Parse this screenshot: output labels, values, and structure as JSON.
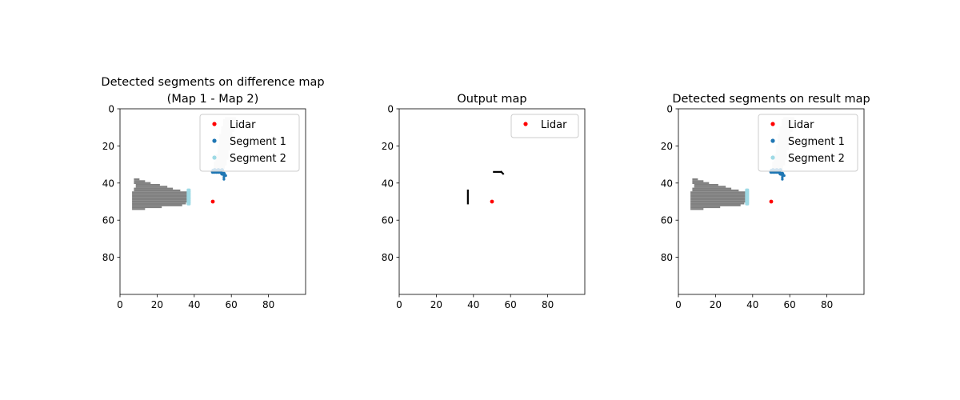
{
  "chart_data": [
    {
      "type": "heatmap",
      "title_lines": [
        "Detected segments on difference map",
        "(Map 1 - Map 2)"
      ],
      "xlim": [
        0,
        100
      ],
      "ylim": [
        100,
        0
      ],
      "xticks": [
        0,
        20,
        40,
        60,
        80
      ],
      "yticks": [
        0,
        20,
        40,
        60,
        80
      ],
      "legend_position": "upper right",
      "legend": [
        {
          "label": "Lidar",
          "color": "#ff0000"
        },
        {
          "label": "Segment 1",
          "color": "#1f77b4"
        },
        {
          "label": "Segment 2",
          "color": "#9edae5"
        }
      ],
      "regions": [
        {
          "kind": "light",
          "color": "#e6e6e6",
          "rows": [
            [
              5,
              57,
              62
            ],
            [
              6,
              56,
              62
            ],
            [
              7,
              56,
              61
            ],
            [
              8,
              56,
              61
            ],
            [
              9,
              56,
              61
            ],
            [
              10,
              55,
              61
            ],
            [
              11,
              55,
              61
            ],
            [
              12,
              55,
              61
            ],
            [
              13,
              55,
              60
            ],
            [
              14,
              54,
              60
            ],
            [
              15,
              54,
              60
            ],
            [
              16,
              54,
              60
            ],
            [
              17,
              54,
              60
            ],
            [
              18,
              54,
              59
            ],
            [
              19,
              54,
              59
            ],
            [
              20,
              53,
              59
            ],
            [
              21,
              53,
              59
            ],
            [
              22,
              53,
              59
            ],
            [
              23,
              53,
              58
            ],
            [
              24,
              53,
              58
            ],
            [
              25,
              52,
              58
            ],
            [
              26,
              52,
              58
            ],
            [
              27,
              52,
              58
            ],
            [
              28,
              52,
              57
            ],
            [
              29,
              51,
              57
            ],
            [
              30,
              51,
              57
            ],
            [
              31,
              51,
              56
            ],
            [
              32,
              51,
              56
            ],
            [
              33,
              51,
              55
            ]
          ]
        },
        {
          "kind": "dark",
          "color": "#808080",
          "rows": [
            [
              38,
              8,
              10
            ],
            [
              39,
              8,
              13
            ],
            [
              40,
              8,
              16
            ],
            [
              41,
              9,
              21
            ],
            [
              42,
              9,
              25
            ],
            [
              43,
              8,
              28
            ],
            [
              44,
              8,
              32
            ],
            [
              45,
              7,
              36
            ],
            [
              46,
              7,
              36
            ],
            [
              47,
              7,
              36
            ],
            [
              48,
              7,
              36
            ],
            [
              49,
              7,
              36
            ],
            [
              50,
              7,
              36
            ],
            [
              51,
              7,
              35
            ],
            [
              52,
              7,
              33
            ],
            [
              53,
              7,
              22
            ],
            [
              54,
              7,
              13
            ]
          ]
        }
      ],
      "series": [
        {
          "name": "Lidar",
          "color": "#ff0000",
          "points": [
            [
              50,
              50
            ]
          ]
        },
        {
          "name": "Segment 1",
          "color": "#1f77b4",
          "points": [
            [
              50,
              34
            ],
            [
              51,
              34
            ],
            [
              52,
              34
            ],
            [
              53,
              34
            ],
            [
              54,
              34
            ],
            [
              55,
              35
            ],
            [
              56,
              35
            ],
            [
              51,
              33
            ],
            [
              53,
              33
            ],
            [
              55,
              33
            ]
          ]
        },
        {
          "name": "Segment 2",
          "color": "#9edae5",
          "points": [
            [
              37,
              44
            ],
            [
              37,
              45
            ],
            [
              37,
              46
            ],
            [
              37,
              47
            ],
            [
              37,
              48
            ],
            [
              37,
              49
            ],
            [
              37,
              50
            ],
            [
              37,
              51
            ]
          ]
        }
      ],
      "markers": [
        [
          56,
          36
        ],
        [
          57,
          36
        ],
        [
          56,
          37
        ],
        [
          56,
          38
        ],
        [
          50,
          33
        ],
        [
          52,
          33
        ],
        [
          54,
          33
        ]
      ]
    },
    {
      "type": "heatmap",
      "title_lines": [
        "Output map"
      ],
      "xlim": [
        0,
        100
      ],
      "ylim": [
        100,
        0
      ],
      "xticks": [
        0,
        20,
        40,
        60,
        80
      ],
      "yticks": [
        0,
        20,
        40,
        60,
        80
      ],
      "legend_position": "upper right",
      "legend": [
        {
          "label": "Lidar",
          "color": "#ff0000"
        }
      ],
      "regions": [],
      "black_segments": [
        {
          "x1": 37,
          "y1": 44,
          "x2": 37,
          "y2": 51
        },
        {
          "x1": 51,
          "y1": 34,
          "x2": 55,
          "y2": 34
        },
        {
          "x1": 55,
          "y1": 34,
          "x2": 56,
          "y2": 35
        }
      ],
      "series": [
        {
          "name": "Lidar",
          "color": "#ff0000",
          "points": [
            [
              50,
              50
            ]
          ]
        }
      ],
      "markers": []
    },
    {
      "type": "heatmap",
      "title_lines": [
        "Detected segments on result map"
      ],
      "xlim": [
        0,
        100
      ],
      "ylim": [
        100,
        0
      ],
      "xticks": [
        0,
        20,
        40,
        60,
        80
      ],
      "yticks": [
        0,
        20,
        40,
        60,
        80
      ],
      "legend_position": "upper right",
      "legend": [
        {
          "label": "Lidar",
          "color": "#ff0000"
        },
        {
          "label": "Segment 1",
          "color": "#1f77b4"
        },
        {
          "label": "Segment 2",
          "color": "#9edae5"
        }
      ],
      "regions": [
        {
          "kind": "light",
          "color": "#e6e6e6",
          "rows": [
            [
              5,
              57,
              62
            ],
            [
              6,
              56,
              62
            ],
            [
              7,
              56,
              61
            ],
            [
              8,
              56,
              61
            ],
            [
              9,
              56,
              61
            ],
            [
              10,
              55,
              61
            ],
            [
              11,
              55,
              61
            ],
            [
              12,
              55,
              61
            ],
            [
              13,
              55,
              60
            ],
            [
              14,
              54,
              60
            ],
            [
              15,
              54,
              60
            ],
            [
              16,
              54,
              60
            ],
            [
              17,
              54,
              60
            ],
            [
              18,
              54,
              59
            ],
            [
              19,
              54,
              59
            ],
            [
              20,
              53,
              59
            ],
            [
              21,
              53,
              59
            ],
            [
              22,
              53,
              59
            ],
            [
              23,
              53,
              58
            ],
            [
              24,
              53,
              58
            ],
            [
              25,
              52,
              58
            ],
            [
              26,
              52,
              58
            ],
            [
              27,
              52,
              58
            ],
            [
              28,
              52,
              57
            ],
            [
              29,
              51,
              57
            ],
            [
              30,
              51,
              57
            ],
            [
              31,
              51,
              56
            ],
            [
              32,
              51,
              56
            ],
            [
              33,
              51,
              55
            ]
          ]
        },
        {
          "kind": "dark",
          "color": "#808080",
          "rows": [
            [
              38,
              8,
              10
            ],
            [
              39,
              8,
              13
            ],
            [
              40,
              8,
              16
            ],
            [
              41,
              9,
              21
            ],
            [
              42,
              9,
              25
            ],
            [
              43,
              8,
              28
            ],
            [
              44,
              8,
              32
            ],
            [
              45,
              7,
              36
            ],
            [
              46,
              7,
              36
            ],
            [
              47,
              7,
              36
            ],
            [
              48,
              7,
              36
            ],
            [
              49,
              7,
              36
            ],
            [
              50,
              7,
              36
            ],
            [
              51,
              7,
              35
            ],
            [
              52,
              7,
              33
            ],
            [
              53,
              7,
              22
            ],
            [
              54,
              7,
              13
            ]
          ]
        }
      ],
      "series": [
        {
          "name": "Lidar",
          "color": "#ff0000",
          "points": [
            [
              50,
              50
            ]
          ]
        },
        {
          "name": "Segment 1",
          "color": "#1f77b4",
          "points": [
            [
              50,
              34
            ],
            [
              51,
              34
            ],
            [
              52,
              34
            ],
            [
              53,
              34
            ],
            [
              54,
              34
            ],
            [
              55,
              35
            ],
            [
              56,
              35
            ],
            [
              51,
              33
            ],
            [
              53,
              33
            ],
            [
              55,
              33
            ]
          ]
        },
        {
          "name": "Segment 2",
          "color": "#9edae5",
          "points": [
            [
              37,
              44
            ],
            [
              37,
              45
            ],
            [
              37,
              46
            ],
            [
              37,
              47
            ],
            [
              37,
              48
            ],
            [
              37,
              49
            ],
            [
              37,
              50
            ],
            [
              37,
              51
            ]
          ]
        }
      ],
      "markers": [
        [
          56,
          36
        ],
        [
          57,
          36
        ],
        [
          56,
          37
        ],
        [
          56,
          38
        ],
        [
          50,
          33
        ],
        [
          52,
          33
        ],
        [
          54,
          33
        ]
      ]
    }
  ]
}
